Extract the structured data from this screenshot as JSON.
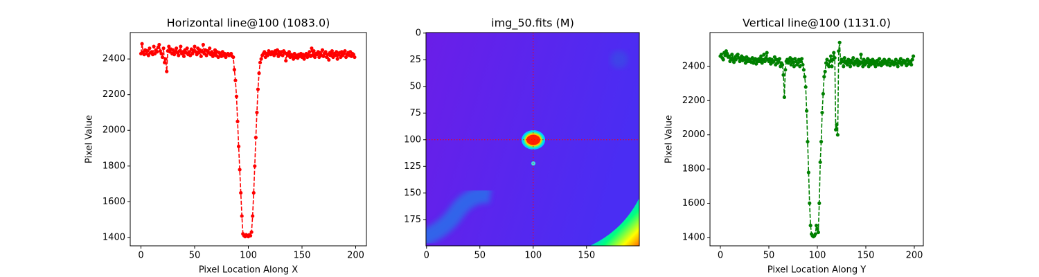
{
  "chart_data": [
    {
      "type": "line",
      "title": "Horizontal line@100 (1083.0)",
      "xlabel": "Pixel Location Along X",
      "ylabel": "Pixel Value",
      "color": "#ff0000",
      "xlim": [
        -10,
        210
      ],
      "ylim": [
        1353,
        2548
      ],
      "xticks": [
        0,
        50,
        100,
        150,
        200
      ],
      "yticks": [
        1400,
        1600,
        1800,
        2000,
        2200,
        2400
      ],
      "x": [
        0,
        1,
        2,
        3,
        4,
        5,
        6,
        7,
        8,
        9,
        10,
        11,
        12,
        13,
        14,
        15,
        16,
        17,
        18,
        19,
        20,
        21,
        22,
        23,
        24,
        25,
        26,
        27,
        28,
        29,
        30,
        31,
        32,
        33,
        34,
        35,
        36,
        37,
        38,
        39,
        40,
        41,
        42,
        43,
        44,
        45,
        46,
        47,
        48,
        49,
        50,
        51,
        52,
        53,
        54,
        55,
        56,
        57,
        58,
        59,
        60,
        61,
        62,
        63,
        64,
        65,
        66,
        67,
        68,
        69,
        70,
        71,
        72,
        73,
        74,
        75,
        76,
        77,
        78,
        79,
        80,
        81,
        82,
        83,
        84,
        85,
        86,
        87,
        88,
        89,
        90,
        91,
        92,
        93,
        94,
        95,
        96,
        97,
        98,
        99,
        100,
        101,
        102,
        103,
        104,
        105,
        106,
        107,
        108,
        109,
        110,
        111,
        112,
        113,
        114,
        115,
        116,
        117,
        118,
        119,
        120,
        121,
        122,
        123,
        124,
        125,
        126,
        127,
        128,
        129,
        130,
        131,
        132,
        133,
        134,
        135,
        136,
        137,
        138,
        139,
        140,
        141,
        142,
        143,
        144,
        145,
        146,
        147,
        148,
        149,
        150,
        151,
        152,
        153,
        154,
        155,
        156,
        157,
        158,
        159,
        160,
        161,
        162,
        163,
        164,
        165,
        166,
        167,
        168,
        169,
        170,
        171,
        172,
        173,
        174,
        175,
        176,
        177,
        178,
        179,
        180,
        181,
        182,
        183,
        184,
        185,
        186,
        187,
        188,
        189,
        190,
        191,
        192,
        193,
        194,
        195,
        196,
        197,
        198,
        199
      ],
      "values": [
        2430,
        2485,
        2440,
        2425,
        2450,
        2430,
        2445,
        2420,
        2460,
        2435,
        2440,
        2425,
        2470,
        2430,
        2450,
        2440,
        2465,
        2480,
        2445,
        2430,
        2410,
        2460,
        2380,
        2400,
        2330,
        2445,
        2470,
        2440,
        2455,
        2430,
        2450,
        2425,
        2440,
        2460,
        2435,
        2420,
        2445,
        2470,
        2430,
        2440,
        2415,
        2450,
        2435,
        2460,
        2425,
        2440,
        2420,
        2455,
        2430,
        2445,
        2470,
        2440,
        2425,
        2460,
        2435,
        2450,
        2415,
        2440,
        2480,
        2430,
        2450,
        2420,
        2445,
        2435,
        2460,
        2425,
        2440,
        2415,
        2430,
        2450,
        2420,
        2440,
        2410,
        2435,
        2425,
        2415,
        2440,
        2420,
        2430,
        2410,
        2425,
        2430,
        2420,
        2425,
        2430,
        2415,
        2410,
        2340,
        2280,
        2190,
        2050,
        1910,
        1780,
        1650,
        1520,
        1420,
        1410,
        1405,
        1415,
        1410,
        1405,
        1415,
        1410,
        1430,
        1520,
        1650,
        1800,
        1960,
        2100,
        2230,
        2320,
        2380,
        2400,
        2420,
        2430,
        2440,
        2410,
        2430,
        2420,
        2445,
        2430,
        2425,
        2440,
        2435,
        2420,
        2445,
        2430,
        2450,
        2415,
        2440,
        2425,
        2440,
        2420,
        2445,
        2435,
        2390,
        2430,
        2420,
        2440,
        2410,
        2425,
        2415,
        2400,
        2430,
        2410,
        2420,
        2405,
        2425,
        2415,
        2430,
        2410,
        2425,
        2400,
        2420,
        2430,
        2410,
        2425,
        2440,
        2415,
        2460,
        2420,
        2445,
        2410,
        2430,
        2425,
        2440,
        2410,
        2435,
        2420,
        2450,
        2415,
        2430,
        2440,
        2410,
        2425,
        2395,
        2435,
        2420,
        2445,
        2410,
        2430,
        2420,
        2440,
        2400,
        2425,
        2435,
        2410,
        2440,
        2420,
        2430,
        2445,
        2410,
        2425,
        2435,
        2420,
        2440,
        2415,
        2430,
        2425,
        2410
      ]
    },
    {
      "type": "image",
      "title": "img_50.fits (M)",
      "xlim": [
        -0.5,
        199.5
      ],
      "ylim": [
        199.5,
        -0.5
      ],
      "xticks": [
        0,
        50,
        100,
        150
      ],
      "yticks": [
        0,
        25,
        50,
        75,
        100,
        125,
        150,
        175
      ],
      "crosshair": {
        "x": 100,
        "y": 100,
        "color": "#ff0000"
      }
    },
    {
      "type": "line",
      "title": "Vertical line@100 (1131.0)",
      "xlabel": "Pixel Location Along Y",
      "ylabel": "Pixel Value",
      "color": "#008000",
      "xlim": [
        -10.7,
        209.3
      ],
      "ylim": [
        1351,
        2598
      ],
      "xticks": [
        0,
        50,
        100,
        150,
        200
      ],
      "yticks": [
        1400,
        1600,
        1800,
        2000,
        2200,
        2400
      ],
      "x": [
        0,
        1,
        2,
        3,
        4,
        5,
        6,
        7,
        8,
        9,
        10,
        11,
        12,
        13,
        14,
        15,
        16,
        17,
        18,
        19,
        20,
        21,
        22,
        23,
        24,
        25,
        26,
        27,
        28,
        29,
        30,
        31,
        32,
        33,
        34,
        35,
        36,
        37,
        38,
        39,
        40,
        41,
        42,
        43,
        44,
        45,
        46,
        47,
        48,
        49,
        50,
        51,
        52,
        53,
        54,
        55,
        56,
        57,
        58,
        59,
        60,
        61,
        62,
        63,
        64,
        65,
        66,
        67,
        68,
        69,
        70,
        71,
        72,
        73,
        74,
        75,
        76,
        77,
        78,
        79,
        80,
        81,
        82,
        83,
        84,
        85,
        86,
        87,
        88,
        89,
        90,
        91,
        92,
        93,
        94,
        95,
        96,
        97,
        98,
        99,
        100,
        101,
        102,
        103,
        104,
        105,
        106,
        107,
        108,
        109,
        110,
        111,
        112,
        113,
        114,
        115,
        116,
        117,
        118,
        119,
        120,
        121,
        122,
        123,
        124,
        125,
        126,
        127,
        128,
        129,
        130,
        131,
        132,
        133,
        134,
        135,
        136,
        137,
        138,
        139,
        140,
        141,
        142,
        143,
        144,
        145,
        146,
        147,
        148,
        149,
        150,
        151,
        152,
        153,
        154,
        155,
        156,
        157,
        158,
        159,
        160,
        161,
        162,
        163,
        164,
        165,
        166,
        167,
        168,
        169,
        170,
        171,
        172,
        173,
        174,
        175,
        176,
        177,
        178,
        179,
        180,
        181,
        182,
        183,
        184,
        185,
        186,
        187,
        188,
        189,
        190,
        191,
        192,
        193,
        194,
        195,
        196,
        197,
        198,
        199
      ],
      "values": [
        2460,
        2470,
        2450,
        2440,
        2480,
        2465,
        2490,
        2475,
        2455,
        2460,
        2430,
        2445,
        2470,
        2440,
        2425,
        2455,
        2440,
        2465,
        2470,
        2450,
        2430,
        2445,
        2460,
        2435,
        2450,
        2440,
        2420,
        2455,
        2430,
        2445,
        2430,
        2440,
        2425,
        2450,
        2420,
        2435,
        2445,
        2415,
        2440,
        2430,
        2445,
        2430,
        2460,
        2420,
        2440,
        2470,
        2430,
        2450,
        2480,
        2440,
        2430,
        2445,
        2415,
        2440,
        2425,
        2430,
        2455,
        2410,
        2440,
        2420,
        2430,
        2445,
        2400,
        2420,
        2410,
        2350,
        2220,
        2380,
        2430,
        2440,
        2420,
        2430,
        2450,
        2410,
        2440,
        2425,
        2400,
        2445,
        2430,
        2410,
        2420,
        2440,
        2400,
        2430,
        2445,
        2410,
        2380,
        2340,
        2280,
        2140,
        1960,
        1780,
        1600,
        1470,
        1420,
        1410,
        1405,
        1410,
        1420,
        1470,
        1450,
        1430,
        1600,
        1840,
        1960,
        2130,
        2240,
        2340,
        2370,
        2420,
        2440,
        2410,
        2400,
        2430,
        2460,
        2400,
        2440,
        2480,
        2450,
        2030,
        2060,
        2000,
        2490,
        2540,
        2420,
        2440,
        2430,
        2400,
        2450,
        2420,
        2430,
        2410,
        2440,
        2425,
        2400,
        2435,
        2420,
        2450,
        2410,
        2430,
        2420,
        2440,
        2405,
        2430,
        2415,
        2470,
        2425,
        2400,
        2440,
        2410,
        2430,
        2420,
        2445,
        2400,
        2435,
        2410,
        2425,
        2440,
        2415,
        2430,
        2400,
        2420,
        2435,
        2410,
        2445,
        2420,
        2405,
        2430,
        2415,
        2440,
        2420,
        2430,
        2410,
        2425,
        2440,
        2405,
        2420,
        2430,
        2415,
        2410,
        2425,
        2440,
        2415,
        2400,
        2430,
        2420,
        2445,
        2410,
        2425,
        2435,
        2420,
        2430,
        2405,
        2440,
        2415,
        2425,
        2430,
        2410,
        2440,
        2460
      ]
    }
  ]
}
